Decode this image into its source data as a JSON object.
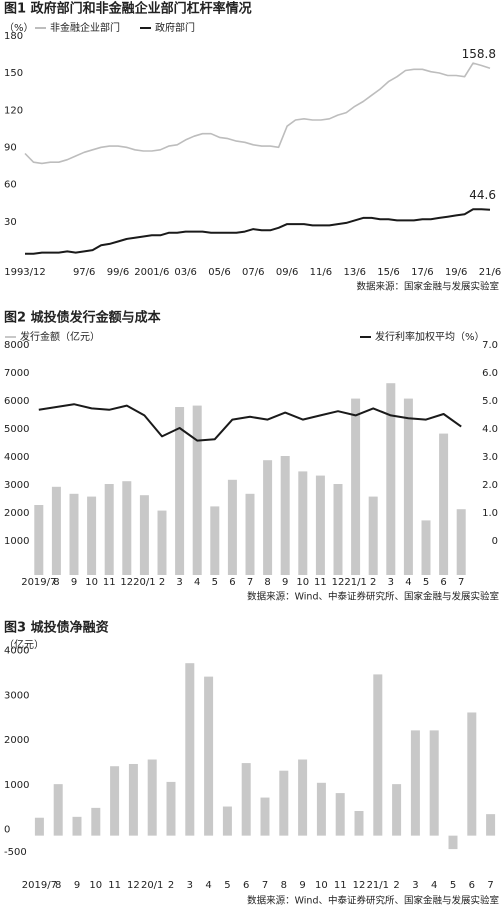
{
  "chart_data": [
    {
      "type": "line",
      "title": "图1 政府部门和非金融企业部门杠杆率情况",
      "y_label": "（%）",
      "source": "数据来源：国家金融与发展实验室",
      "categories": [
        "1993/12",
        null,
        null,
        null,
        null,
        null,
        null,
        "97/6",
        null,
        null,
        null,
        "99/6",
        null,
        null,
        null,
        "2001/6",
        null,
        null,
        null,
        "03/6",
        null,
        null,
        null,
        "05/6",
        null,
        null,
        null,
        "07/6",
        null,
        null,
        null,
        "09/6",
        null,
        null,
        null,
        "11/6",
        null,
        null,
        null,
        "13/6",
        null,
        null,
        null,
        "15/6",
        null,
        null,
        null,
        "17/6",
        null,
        null,
        null,
        "19/6",
        null,
        null,
        null,
        "21/6"
      ],
      "series": [
        {
          "name": "非金融企业部门",
          "color": "#bdbdbd",
          "values": [
            90,
            83,
            82,
            83,
            83,
            85,
            88,
            91,
            93,
            95,
            96,
            96,
            95,
            93,
            92,
            92,
            93,
            96,
            97,
            101,
            104,
            106,
            106,
            103,
            102,
            100,
            99,
            97,
            96,
            96,
            95,
            112,
            117,
            118,
            117,
            117,
            118,
            121,
            123,
            128,
            132,
            137,
            142,
            148,
            152,
            157,
            158,
            158,
            156,
            155,
            153,
            153,
            152,
            163,
            161,
            158.8
          ]
        },
        {
          "name": "政府部门",
          "color": "#1a1a1a",
          "values": [
            9,
            9,
            10,
            10,
            10,
            11,
            10,
            11,
            12,
            16,
            17,
            19,
            21,
            22,
            23,
            24,
            24,
            26,
            26,
            27,
            27,
            27,
            26,
            26,
            26,
            26,
            27,
            29,
            28,
            28,
            30,
            33,
            33,
            33,
            32,
            32,
            32,
            33,
            34,
            36,
            38,
            38,
            37,
            37,
            36,
            36,
            36,
            37,
            37,
            38,
            39,
            40,
            41,
            45,
            45,
            44.6
          ]
        }
      ],
      "ylim": [
        0,
        180
      ],
      "yticks": [
        30,
        60,
        90,
        120,
        150,
        180
      ],
      "grid": false
    },
    {
      "type": "combo",
      "title": "图2 城投债发行金额与成本",
      "source": "数据来源：Wind、中泰证券研究所、国家金融与发展实验室",
      "categories": [
        "2019/7",
        "8",
        "9",
        "10",
        "11",
        "12",
        "20/1",
        "2",
        "3",
        "4",
        "5",
        "6",
        "7",
        "8",
        "9",
        "10",
        "11",
        "12",
        "21/1",
        "2",
        "3",
        "4",
        "5",
        "6",
        "7"
      ],
      "series": [
        {
          "name": "发行金额（亿元）",
          "color": "#c8c8c8",
          "axis": "y",
          "values": [
            2500,
            3150,
            2900,
            2800,
            3250,
            3350,
            2850,
            2300,
            6000,
            6050,
            2450,
            3400,
            2900,
            4100,
            4250,
            3700,
            3550,
            3250,
            6300,
            2800,
            6850,
            6300,
            1950,
            5050,
            2350
          ]
        },
        {
          "name": "发行利率加权平均（%）",
          "color": "#1a1a1a",
          "axis": "y2",
          "values": [
            4.9,
            5.0,
            5.1,
            4.95,
            4.9,
            5.05,
            4.7,
            3.95,
            4.25,
            3.8,
            3.85,
            4.55,
            4.65,
            4.55,
            4.8,
            4.55,
            4.7,
            4.85,
            4.7,
            4.95,
            4.7,
            4.6,
            4.55,
            4.75,
            4.3
          ]
        }
      ],
      "ylim": [
        0,
        8000
      ],
      "yticks": [
        1000,
        2000,
        3000,
        4000,
        5000,
        6000,
        7000,
        8000
      ],
      "y2lim": [
        -1,
        7
      ],
      "y2ticks": [
        0,
        {
          "value": 1,
          "label": "1.0"
        },
        {
          "value": 2,
          "label": "2.0"
        },
        {
          "value": 3,
          "label": "3.0"
        },
        {
          "value": 4,
          "label": "4.0"
        },
        {
          "value": 5,
          "label": "5.0"
        },
        {
          "value": 6,
          "label": "6.0"
        },
        {
          "value": 7,
          "label": "7.0"
        }
      ],
      "grid": false
    },
    {
      "type": "bar",
      "title": "图3 城投债净融资",
      "y_label": "（亿元）",
      "source": "数据来源：Wind、中泰证券研究所、国家金融与发展实验室",
      "categories": [
        "2019/7",
        "8",
        "9",
        "10",
        "11",
        "12",
        "20/1",
        "2",
        "3",
        "4",
        "5",
        "6",
        "7",
        "8",
        "9",
        "10",
        "11",
        "12",
        "21/1",
        "2",
        "3",
        "4",
        "5",
        "6",
        "7"
      ],
      "values": [
        400,
        1150,
        420,
        620,
        1550,
        1600,
        1700,
        1200,
        3850,
        3550,
        650,
        1620,
        850,
        1450,
        1700,
        1180,
        950,
        550,
        3600,
        1150,
        2350,
        2350,
        -300,
        2750,
        480
      ],
      "color": "#c8c8c8",
      "ylim": [
        -700,
        4100
      ],
      "yticks": [
        -500,
        0,
        1000,
        2000,
        3000,
        4000
      ],
      "grid": false
    }
  ]
}
